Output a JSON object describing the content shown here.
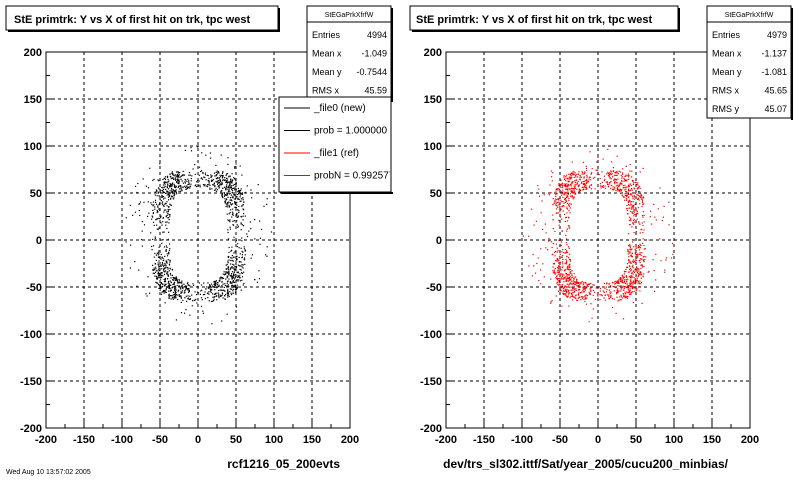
{
  "chart_data": [
    {
      "type": "scatter",
      "title": "StE primtrk: Y vs X of first hit on trk, tpc west",
      "xlim": [
        -200,
        200
      ],
      "ylim": [
        -200,
        200
      ],
      "xticks": [
        -200,
        -150,
        -100,
        -50,
        0,
        50,
        100,
        150,
        200
      ],
      "yticks": [
        -200,
        -150,
        -100,
        -50,
        0,
        50,
        100,
        150,
        200
      ],
      "grid": true,
      "marker_color": "#000000",
      "caption": "rcf1216_05_200evts",
      "stats": {
        "name": "StEGaPrkXfrfW",
        "rows": [
          {
            "label": "Entries",
            "value": "4994"
          },
          {
            "label": "Mean x",
            "value": "-1.049"
          },
          {
            "label": "Mean y",
            "value": "-0.7544"
          },
          {
            "label": "RMS x",
            "value": "45.59"
          }
        ]
      },
      "legend": {
        "placement": "top-right",
        "entries": [
          {
            "label": "_file0 (new)",
            "color": "#000000"
          },
          {
            "label": "prob = 1.000000",
            "color": "#000000"
          },
          {
            "label": "_file1 (ref)",
            "color": "#ff0000"
          },
          {
            "label": "probN = 0.992577",
            "color": "#ff0000"
          }
        ]
      },
      "distribution": {
        "ring_center": [
          0,
          5
        ],
        "ring_radius_x": [
          38,
          62
        ],
        "ring_radius_y": [
          50,
          70
        ],
        "halo_radius": 100
      }
    },
    {
      "type": "scatter",
      "title": "StE primtrk: Y vs X of first hit on trk, tpc west",
      "xlim": [
        -200,
        200
      ],
      "ylim": [
        -200,
        200
      ],
      "xticks": [
        -200,
        -150,
        -100,
        -50,
        0,
        50,
        100,
        150,
        200
      ],
      "yticks": [
        -200,
        -150,
        -100,
        -50,
        0,
        50,
        100,
        150,
        200
      ],
      "grid": true,
      "marker_color": "#ff0000",
      "caption": "dev/trs_sl302.ittf/Sat/year_2005/cucu200_minbias/",
      "stats": {
        "name": "StEGaPrkXfrfW",
        "rows": [
          {
            "label": "Entries",
            "value": "4979"
          },
          {
            "label": "Mean x",
            "value": "-1.137"
          },
          {
            "label": "Mean y",
            "value": "-1.081"
          },
          {
            "label": "RMS x",
            "value": "45.65"
          },
          {
            "label": "RMS y",
            "value": "45.07"
          }
        ]
      },
      "distribution": {
        "ring_center": [
          0,
          5
        ],
        "ring_radius_x": [
          38,
          62
        ],
        "ring_radius_y": [
          50,
          70
        ],
        "halo_radius": 100
      }
    }
  ],
  "footer_note": "Wed Aug 10 13:57:02 2005"
}
